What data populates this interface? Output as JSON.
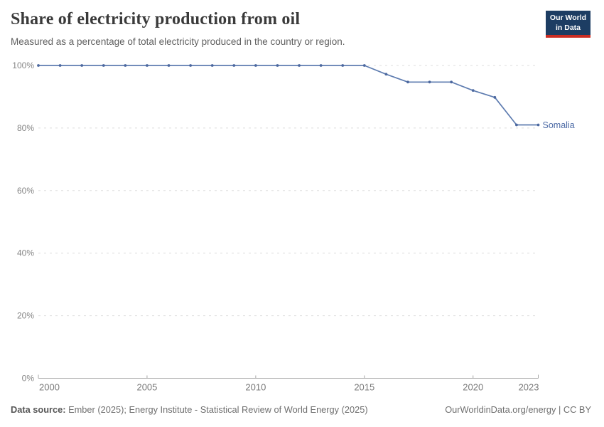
{
  "header": {
    "title": "Share of electricity production from oil",
    "subtitle": "Measured as a percentage of total electricity produced in the country or region.",
    "logo": {
      "line1": "Our World",
      "line2": "in Data",
      "bg": "#1d3d63",
      "bar": "#cb2d23"
    }
  },
  "footer": {
    "datasource_label": "Data source:",
    "datasource_text": "Ember (2025); Energy Institute - Statistical Review of World Energy (2025)",
    "attribution": "OurWorldinData.org/energy | CC BY"
  },
  "chart_data": {
    "type": "line",
    "title": "Share of electricity production from oil",
    "subtitle": "Measured as a percentage of total electricity produced in the country or region.",
    "x": [
      2000,
      2001,
      2002,
      2003,
      2004,
      2005,
      2006,
      2007,
      2008,
      2009,
      2010,
      2011,
      2012,
      2013,
      2014,
      2015,
      2016,
      2017,
      2018,
      2019,
      2020,
      2021,
      2022,
      2023
    ],
    "series": [
      {
        "name": "Somalia",
        "color": "#5e7cb0",
        "dot_color": "#4c689f",
        "values": [
          100,
          100,
          100,
          100,
          100,
          100,
          100,
          100,
          100,
          100,
          100,
          100,
          100,
          100,
          100,
          100,
          97.2,
          94.7,
          94.7,
          94.7,
          92,
          89.8,
          81,
          81
        ]
      }
    ],
    "xlim": [
      2000,
      2023
    ],
    "ylim": [
      0,
      100
    ],
    "xticks": [
      2000,
      2005,
      2010,
      2015,
      2020,
      2023
    ],
    "yticks": [
      0,
      20,
      40,
      60,
      80,
      100
    ],
    "ytick_labels": [
      "0%",
      "20%",
      "40%",
      "60%",
      "80%",
      "100%"
    ],
    "grid": "horizontal-dashed",
    "legend_position": "end-of-line-label",
    "colors": {
      "grid": "#dedede",
      "axis": "#a8a8a8",
      "ytick_label": "#868686",
      "xtick_label": "#7b7b7b",
      "entity_label": "#4d6ba6"
    }
  }
}
